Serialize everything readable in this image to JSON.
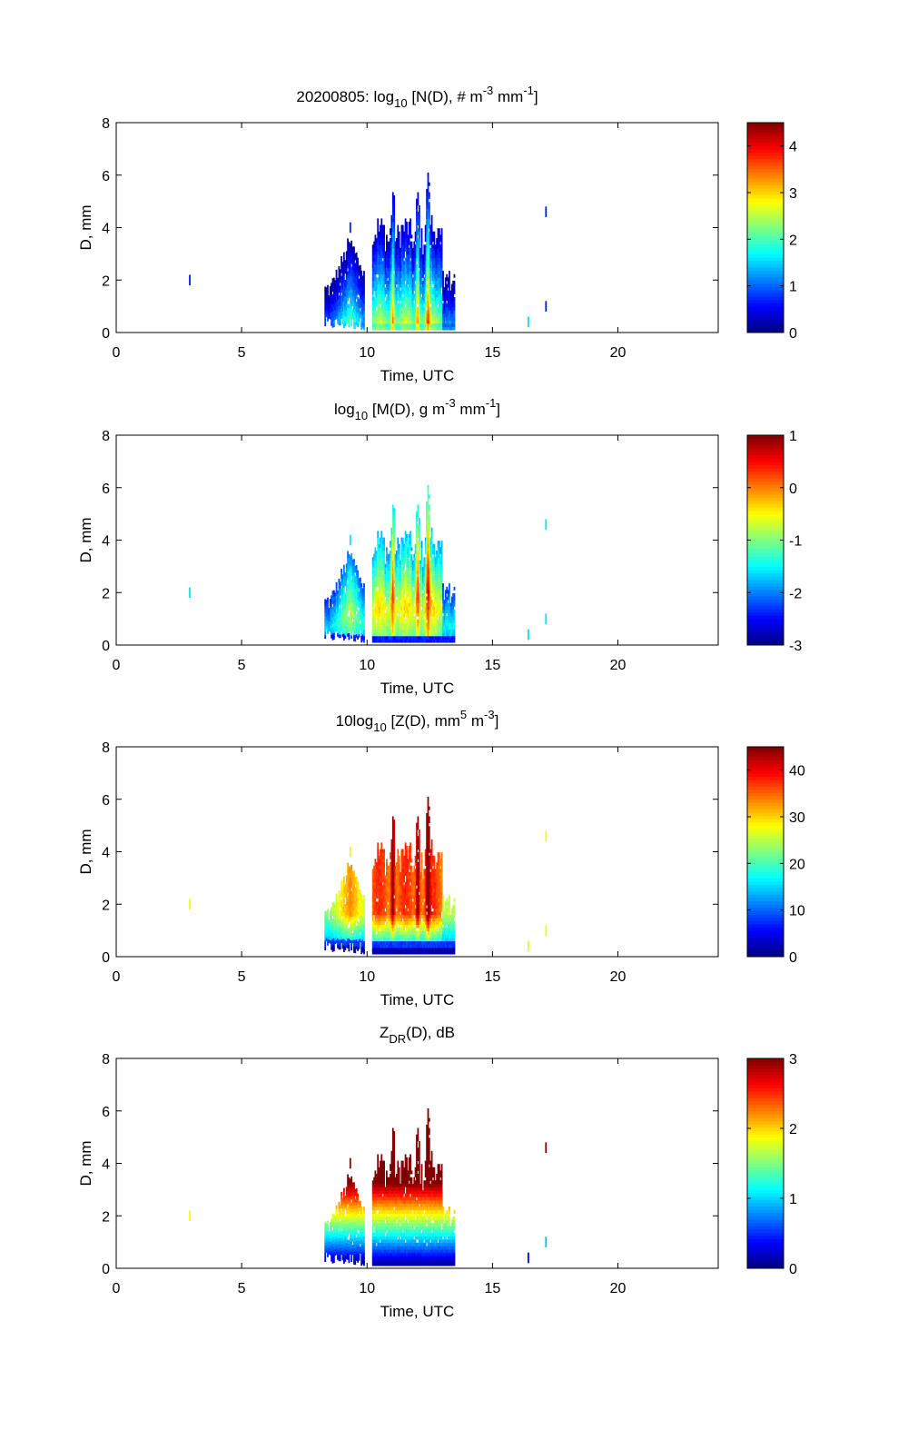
{
  "chart_data": [
    {
      "type": "heatmap",
      "title_parts": {
        "pre": "20200805: log",
        "sub": "10",
        "mid1": " [N(D), # m",
        "sup1": "-3",
        "mid2": " mm",
        "sup2": "-1",
        "post": "]"
      },
      "title": "20200805: log10 [N(D), # m-3 mm-1]",
      "xlabel": "Time, UTC",
      "ylabel": "D, mm",
      "xlim": [
        0,
        24
      ],
      "ylim": [
        0,
        8
      ],
      "xticks": [
        "0",
        "5",
        "10",
        "15",
        "20"
      ],
      "yticks": [
        "0",
        "2",
        "4",
        "6",
        "8"
      ],
      "clim": [
        0,
        4.5
      ],
      "cticks": [
        "0",
        "1",
        "2",
        "3",
        "4"
      ],
      "field": "N"
    },
    {
      "type": "heatmap",
      "title_parts": {
        "pre": "log",
        "sub": "10",
        "mid1": " [M(D), g m",
        "sup1": "-3",
        "mid2": " mm",
        "sup2": "-1",
        "post": "]"
      },
      "title": "log10 [M(D), g m-3 mm-1]",
      "xlabel": "Time, UTC",
      "ylabel": "D, mm",
      "xlim": [
        0,
        24
      ],
      "ylim": [
        0,
        8
      ],
      "xticks": [
        "0",
        "5",
        "10",
        "15",
        "20"
      ],
      "yticks": [
        "0",
        "2",
        "4",
        "6",
        "8"
      ],
      "clim": [
        -3,
        1
      ],
      "cticks": [
        "-3",
        "-2",
        "-1",
        "0",
        "1"
      ],
      "field": "M"
    },
    {
      "type": "heatmap",
      "title_parts": {
        "pre": "10log",
        "sub": "10",
        "mid1": " [Z(D),  mm",
        "sup1": "5",
        "mid2": " m",
        "sup2": "-3",
        "post": "]"
      },
      "title": "10log10 [Z(D),  mm5 m-3]",
      "xlabel": "Time, UTC",
      "ylabel": "D, mm",
      "xlim": [
        0,
        24
      ],
      "ylim": [
        0,
        8
      ],
      "xticks": [
        "0",
        "5",
        "10",
        "15",
        "20"
      ],
      "yticks": [
        "0",
        "2",
        "4",
        "6",
        "8"
      ],
      "clim": [
        0,
        45
      ],
      "cticks": [
        "0",
        "10",
        "20",
        "30",
        "40"
      ],
      "field": "Z"
    },
    {
      "type": "heatmap",
      "title_parts": {
        "pre": "Z",
        "sub": "DR",
        "mid1": "(D), dB",
        "sup1": "",
        "mid2": "",
        "sup2": "",
        "post": ""
      },
      "title": "ZDR(D), dB",
      "xlabel": "Time, UTC",
      "ylabel": "D, mm",
      "xlim": [
        0,
        24
      ],
      "ylim": [
        0,
        8
      ],
      "xticks": [
        "0",
        "5",
        "10",
        "15",
        "20"
      ],
      "yticks": [
        "0",
        "2",
        "4",
        "6",
        "8"
      ],
      "clim": [
        0,
        3
      ],
      "cticks": [
        "0",
        "1",
        "2",
        "3"
      ],
      "field": "ZDR"
    }
  ],
  "echo": {
    "episode1_time": [
      8.3,
      9.9
    ],
    "episode2_time": [
      10.2,
      13.5
    ],
    "peak_times": [
      11.0,
      12.0,
      12.4
    ],
    "max_diameter": 6.0,
    "isolated_points": [
      {
        "t": 2.9,
        "d": 2.0
      },
      {
        "t": 9.3,
        "d": 4.0
      },
      {
        "t": 16.4,
        "d": 0.4
      },
      {
        "t": 17.1,
        "d": 1.0
      },
      {
        "t": 17.1,
        "d": 4.6
      }
    ]
  },
  "colors": {
    "axis": "#000000",
    "background": "#ffffff"
  }
}
